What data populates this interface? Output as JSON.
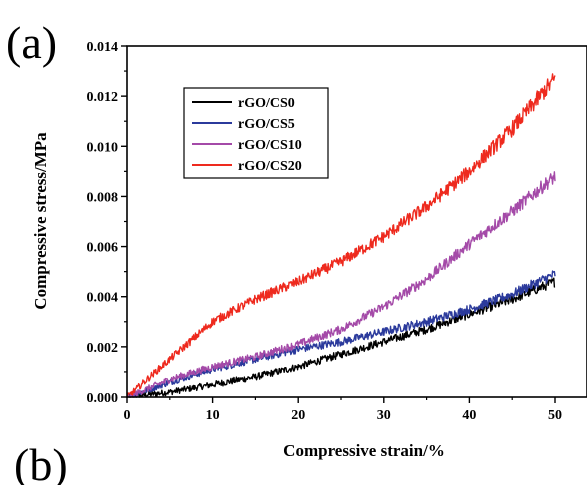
{
  "panel_labels": {
    "top": "(a)",
    "bottom": "(b)"
  },
  "chart_data": {
    "type": "line",
    "xlabel": "Compressive strain/%",
    "ylabel": "Compressive stress/MPa",
    "xlim": [
      0,
      50
    ],
    "ylim": [
      0,
      0.014
    ],
    "xticks": [
      "0",
      "10",
      "20",
      "30",
      "40",
      "50"
    ],
    "yticks": [
      "0.000",
      "0.002",
      "0.004",
      "0.006",
      "0.008",
      "0.010",
      "0.012",
      "0.014"
    ],
    "legend_position": "top-left",
    "grid": false,
    "series": [
      {
        "name": "rGO/CS0",
        "color": "#000000",
        "x": [
          0,
          5,
          10,
          15,
          20,
          25,
          30,
          35,
          40,
          45,
          50
        ],
        "y": [
          0,
          0.0002,
          0.0005,
          0.0008,
          0.0012,
          0.0017,
          0.0022,
          0.0027,
          0.0033,
          0.0039,
          0.0046
        ]
      },
      {
        "name": "rGO/CS5",
        "color": "#2b3a9c",
        "x": [
          0,
          5,
          10,
          15,
          20,
          25,
          30,
          35,
          40,
          45,
          50
        ],
        "y": [
          0,
          0.0006,
          0.0011,
          0.0015,
          0.0019,
          0.0022,
          0.0026,
          0.003,
          0.0035,
          0.0041,
          0.0049
        ]
      },
      {
        "name": "rGO/CS10",
        "color": "#a44aa8",
        "x": [
          0,
          5,
          10,
          15,
          20,
          25,
          30,
          35,
          40,
          45,
          50
        ],
        "y": [
          0,
          0.0007,
          0.0012,
          0.0016,
          0.0021,
          0.0027,
          0.0036,
          0.0047,
          0.0061,
          0.0074,
          0.0088
        ]
      },
      {
        "name": "rGO/CS20",
        "color": "#ee2a1e",
        "x": [
          0,
          5,
          10,
          15,
          20,
          25,
          30,
          35,
          40,
          45,
          50
        ],
        "y": [
          0,
          0.0015,
          0.003,
          0.0039,
          0.0046,
          0.0054,
          0.0064,
          0.0076,
          0.009,
          0.0107,
          0.0127
        ]
      }
    ]
  }
}
